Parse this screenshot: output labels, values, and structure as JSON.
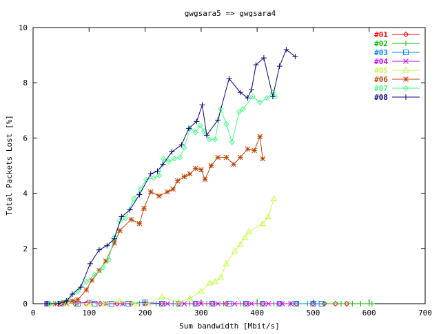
{
  "chart_data": {
    "type": "line",
    "title": "gwgsara5 => gwgsara4",
    "xlabel": "Sum bandwidth [Mbit/s]",
    "ylabel": "Total Packets Lost [%]",
    "xlim": [
      0,
      700
    ],
    "ylim": [
      0,
      10
    ],
    "xticks": [
      0,
      100,
      200,
      300,
      400,
      500,
      600,
      700
    ],
    "yticks": [
      0,
      2,
      4,
      6,
      8,
      10
    ],
    "grid": false,
    "legend_position": "top-right",
    "series": [
      {
        "name": "#01",
        "color": "#ff0000",
        "marker": "diamond",
        "points": [
          [
            25,
            0
          ],
          [
            50,
            0
          ],
          [
            75,
            0
          ],
          [
            95,
            0
          ],
          [
            120,
            0
          ],
          [
            150,
            0
          ],
          [
            175,
            0
          ],
          [
            200,
            0
          ],
          [
            230,
            0
          ],
          [
            260,
            0
          ],
          [
            290,
            0
          ],
          [
            320,
            0
          ],
          [
            345,
            0
          ],
          [
            380,
            0
          ],
          [
            410,
            0
          ],
          [
            440,
            0
          ],
          [
            470,
            0
          ],
          [
            500,
            0
          ],
          [
            520,
            0
          ],
          [
            540,
            0
          ],
          [
            560,
            0
          ]
        ]
      },
      {
        "name": "#02",
        "color": "#00c000",
        "marker": "plus",
        "points": [
          [
            30,
            0
          ],
          [
            55,
            0
          ],
          [
            80,
            0
          ],
          [
            105,
            0
          ],
          [
            130,
            0
          ],
          [
            160,
            0
          ],
          [
            190,
            0
          ],
          [
            220,
            0
          ],
          [
            250,
            0
          ],
          [
            280,
            0
          ],
          [
            310,
            0
          ],
          [
            340,
            0
          ],
          [
            370,
            0
          ],
          [
            400,
            0
          ],
          [
            430,
            0
          ],
          [
            460,
            0
          ],
          [
            490,
            0
          ],
          [
            520,
            0
          ],
          [
            550,
            0
          ],
          [
            570,
            0
          ],
          [
            585,
            0
          ],
          [
            600,
            0
          ],
          [
            605,
            0
          ]
        ]
      },
      {
        "name": "#03",
        "color": "#0080ff",
        "marker": "square",
        "points": [
          [
            25,
            0
          ],
          [
            50,
            0
          ],
          [
            80,
            0
          ],
          [
            110,
            0
          ],
          [
            140,
            0
          ],
          [
            170,
            0
          ],
          [
            200,
            0.05
          ],
          [
            230,
            0
          ],
          [
            260,
            0
          ],
          [
            290,
            0
          ],
          [
            320,
            0
          ],
          [
            350,
            0
          ],
          [
            380,
            0
          ],
          [
            410,
            0
          ],
          [
            440,
            0
          ],
          [
            470,
            0
          ],
          [
            500,
            0
          ],
          [
            515,
            0
          ]
        ]
      },
      {
        "name": "#04",
        "color": "#c000ff",
        "marker": "x",
        "points": [
          [
            25,
            0
          ],
          [
            60,
            0
          ],
          [
            100,
            0.05
          ],
          [
            130,
            0
          ],
          [
            160,
            0
          ],
          [
            200,
            0
          ],
          [
            240,
            0
          ],
          [
            270,
            0
          ],
          [
            300,
            0
          ],
          [
            330,
            0
          ],
          [
            360,
            0
          ],
          [
            390,
            0
          ],
          [
            420,
            0
          ],
          [
            445,
            0
          ],
          [
            460,
            0
          ]
        ]
      },
      {
        "name": "#05",
        "color": "#c0ff40",
        "marker": "triangle",
        "points": [
          [
            30,
            0
          ],
          [
            60,
            0
          ],
          [
            100,
            0
          ],
          [
            130,
            0
          ],
          [
            155,
            0.1
          ],
          [
            180,
            0
          ],
          [
            205,
            0
          ],
          [
            230,
            0.25
          ],
          [
            260,
            0.05
          ],
          [
            280,
            0.2
          ],
          [
            300,
            0.45
          ],
          [
            315,
            0.75
          ],
          [
            325,
            0.8
          ],
          [
            335,
            0.95
          ],
          [
            345,
            1.45
          ],
          [
            360,
            1.9
          ],
          [
            370,
            2.15
          ],
          [
            378,
            2.4
          ],
          [
            385,
            2.6
          ],
          [
            410,
            2.9
          ],
          [
            420,
            3.15
          ],
          [
            430,
            3.8
          ]
        ]
      },
      {
        "name": "#06",
        "color": "#c04000",
        "marker": "asterisk",
        "points": [
          [
            40,
            0
          ],
          [
            55,
            0.05
          ],
          [
            70,
            0.1
          ],
          [
            80,
            0.15
          ],
          [
            95,
            0.5
          ],
          [
            105,
            0.85
          ],
          [
            118,
            1.2
          ],
          [
            130,
            1.55
          ],
          [
            145,
            2.2
          ],
          [
            155,
            2.65
          ],
          [
            175,
            3.05
          ],
          [
            190,
            2.9
          ],
          [
            198,
            3.45
          ],
          [
            210,
            4.05
          ],
          [
            225,
            3.9
          ],
          [
            240,
            4.05
          ],
          [
            250,
            4.15
          ],
          [
            258,
            4.45
          ],
          [
            270,
            4.6
          ],
          [
            280,
            4.7
          ],
          [
            290,
            4.9
          ],
          [
            300,
            4.85
          ],
          [
            307,
            4.5
          ],
          [
            318,
            5.0
          ],
          [
            330,
            5.3
          ],
          [
            345,
            5.3
          ],
          [
            358,
            5.05
          ],
          [
            370,
            5.3
          ],
          [
            383,
            5.6
          ],
          [
            395,
            5.55
          ],
          [
            405,
            6.05
          ],
          [
            410,
            5.25
          ]
        ]
      },
      {
        "name": "#07",
        "color": "#40ff80",
        "marker": "diamond",
        "points": [
          [
            30,
            0
          ],
          [
            60,
            0.1
          ],
          [
            80,
            0.45
          ],
          [
            95,
            0.8
          ],
          [
            110,
            1.05
          ],
          [
            125,
            1.3
          ],
          [
            135,
            1.6
          ],
          [
            145,
            2.4
          ],
          [
            155,
            3.0
          ],
          [
            165,
            3.1
          ],
          [
            180,
            3.8
          ],
          [
            192,
            4.15
          ],
          [
            202,
            4.5
          ],
          [
            215,
            4.55
          ],
          [
            225,
            4.65
          ],
          [
            233,
            5.25
          ],
          [
            242,
            5.15
          ],
          [
            252,
            5.25
          ],
          [
            262,
            5.3
          ],
          [
            270,
            5.65
          ],
          [
            280,
            6.35
          ],
          [
            290,
            6.2
          ],
          [
            298,
            6.45
          ],
          [
            305,
            6.25
          ],
          [
            315,
            5.95
          ],
          [
            325,
            5.95
          ],
          [
            335,
            7.05
          ],
          [
            345,
            6.5
          ],
          [
            355,
            5.85
          ],
          [
            368,
            6.95
          ],
          [
            375,
            7.05
          ],
          [
            392,
            7.5
          ],
          [
            405,
            7.3
          ],
          [
            418,
            7.45
          ],
          [
            428,
            7.65
          ],
          [
            432,
            7.5
          ]
        ]
      },
      {
        "name": "#08",
        "color": "#000080",
        "marker": "plus",
        "points": [
          [
            25,
            0
          ],
          [
            45,
            0
          ],
          [
            60,
            0.1
          ],
          [
            70,
            0.35
          ],
          [
            85,
            0.6
          ],
          [
            102,
            1.45
          ],
          [
            118,
            1.95
          ],
          [
            132,
            2.1
          ],
          [
            145,
            2.35
          ],
          [
            158,
            3.15
          ],
          [
            173,
            3.4
          ],
          [
            190,
            3.95
          ],
          [
            210,
            4.7
          ],
          [
            222,
            4.8
          ],
          [
            232,
            5.05
          ],
          [
            248,
            5.5
          ],
          [
            265,
            5.75
          ],
          [
            278,
            6.35
          ],
          [
            292,
            6.6
          ],
          [
            302,
            7.2
          ],
          [
            310,
            6.1
          ],
          [
            330,
            6.65
          ],
          [
            350,
            8.15
          ],
          [
            370,
            7.65
          ],
          [
            383,
            7.45
          ],
          [
            390,
            7.75
          ],
          [
            398,
            8.65
          ],
          [
            412,
            8.9
          ],
          [
            428,
            7.5
          ],
          [
            440,
            8.6
          ],
          [
            452,
            9.2
          ],
          [
            468,
            8.95
          ]
        ]
      }
    ]
  }
}
